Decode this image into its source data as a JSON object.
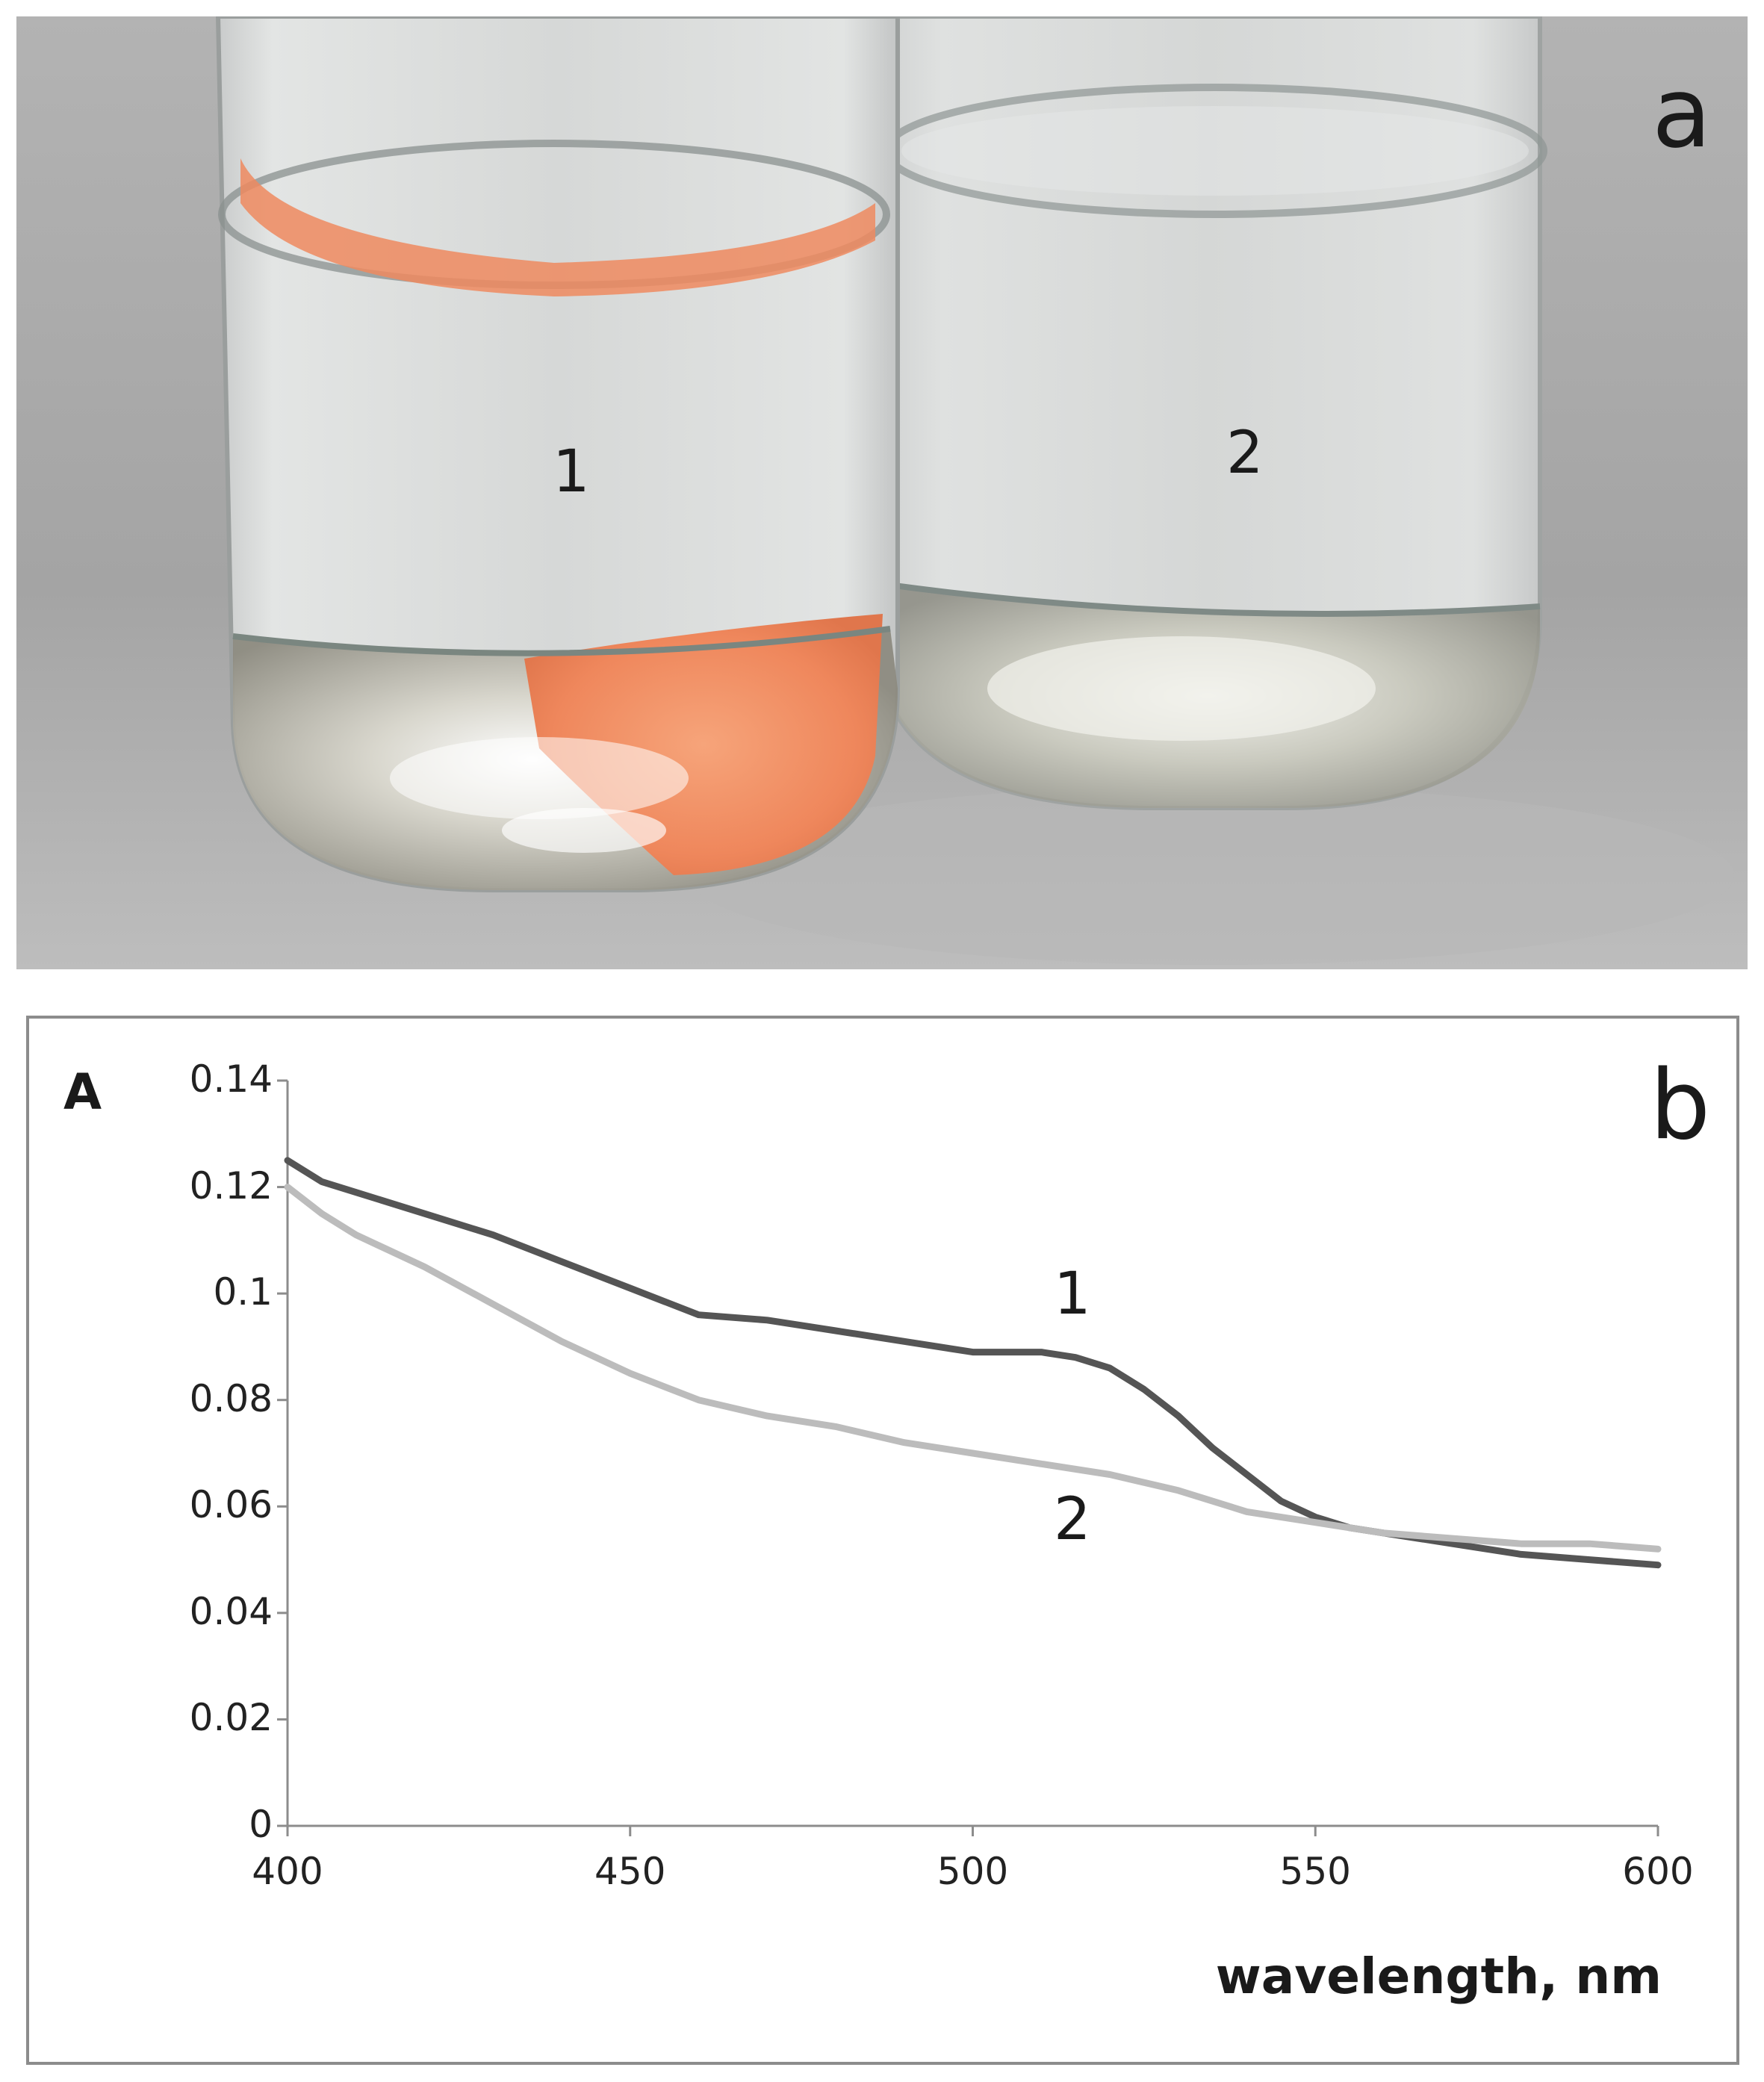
{
  "panel_a": {
    "letter": "a",
    "vial_1_label": "1",
    "vial_2_label": "2",
    "colors": {
      "background": "#a9a9a9",
      "solution_1": "#f08a60",
      "glass": "#d8dada"
    }
  },
  "chart_data": {
    "type": "line",
    "panel_letter": "b",
    "title": "",
    "xlabel": "wavelength, nm",
    "ylabel": "A",
    "xlim": [
      400,
      600
    ],
    "ylim": [
      0,
      0.14
    ],
    "x_ticks": [
      "400",
      "450",
      "500",
      "550",
      "600"
    ],
    "y_ticks": [
      "0",
      "0.02",
      "0.04",
      "0.06",
      "0.08",
      "0.1",
      "0.12",
      "0.14"
    ],
    "x_tick_values": [
      400,
      450,
      500,
      550,
      600
    ],
    "y_tick_values": [
      0,
      0.02,
      0.04,
      0.06,
      0.08,
      0.1,
      0.12,
      0.14
    ],
    "grid": false,
    "series": [
      {
        "name": "1",
        "color": "#555555",
        "x": [
          400,
          405,
          410,
          420,
          430,
          440,
          450,
          460,
          470,
          480,
          490,
          500,
          505,
          510,
          515,
          520,
          525,
          530,
          535,
          540,
          545,
          550,
          555,
          560,
          570,
          580,
          590,
          600
        ],
        "values": [
          0.125,
          0.121,
          0.119,
          0.115,
          0.111,
          0.106,
          0.101,
          0.096,
          0.095,
          0.093,
          0.091,
          0.089,
          0.089,
          0.089,
          0.088,
          0.086,
          0.082,
          0.077,
          0.071,
          0.066,
          0.061,
          0.058,
          0.056,
          0.055,
          0.053,
          0.051,
          0.05,
          0.049
        ]
      },
      {
        "name": "2",
        "color": "#bcbcbc",
        "x": [
          400,
          405,
          410,
          420,
          430,
          440,
          450,
          460,
          470,
          480,
          490,
          500,
          510,
          520,
          530,
          540,
          550,
          560,
          570,
          580,
          590,
          600
        ],
        "values": [
          0.12,
          0.115,
          0.111,
          0.105,
          0.098,
          0.091,
          0.085,
          0.08,
          0.077,
          0.075,
          0.072,
          0.07,
          0.068,
          0.066,
          0.063,
          0.059,
          0.057,
          0.055,
          0.054,
          0.053,
          0.053,
          0.052
        ]
      }
    ],
    "annotations": [
      {
        "text": "1",
        "series": "1"
      },
      {
        "text": "2",
        "series": "2"
      }
    ]
  }
}
